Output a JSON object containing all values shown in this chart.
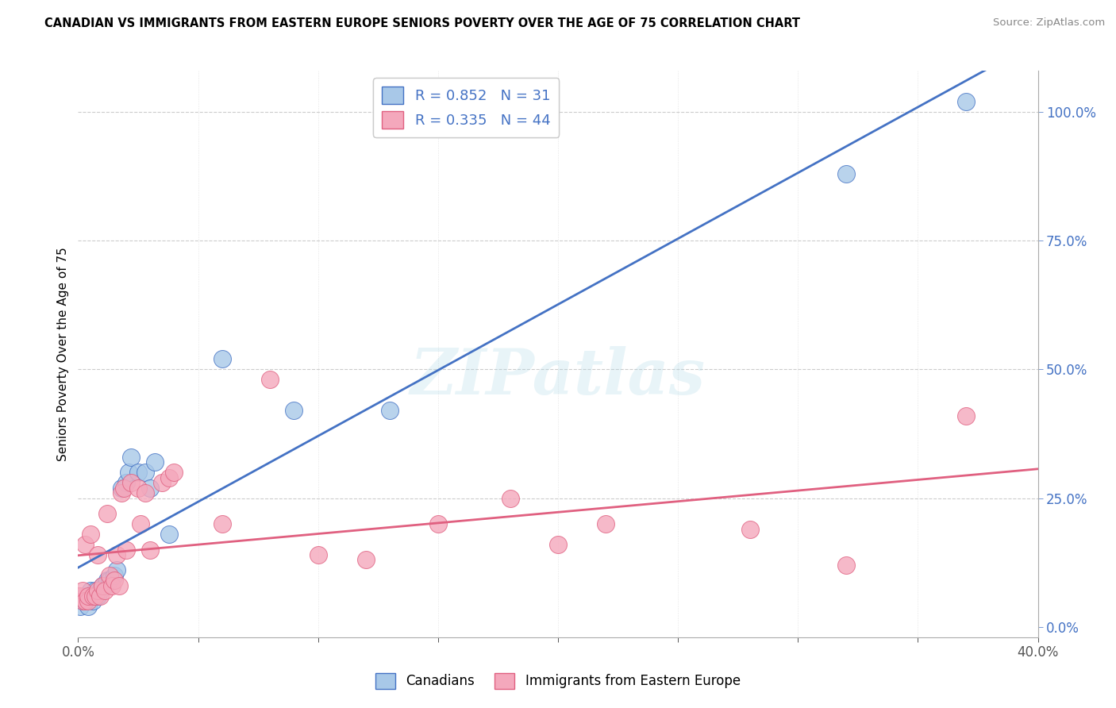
{
  "title": "CANADIAN VS IMMIGRANTS FROM EASTERN EUROPE SENIORS POVERTY OVER THE AGE OF 75 CORRELATION CHART",
  "source": "Source: ZipAtlas.com",
  "ylabel": "Seniors Poverty Over the Age of 75",
  "xlim": [
    0.0,
    0.4
  ],
  "ylim": [
    -0.02,
    1.08
  ],
  "canadian_color": "#a8c8e8",
  "canadian_line_color": "#4472c4",
  "immigrant_color": "#f4a8bc",
  "immigrant_line_color": "#e06080",
  "R_canadian": 0.852,
  "N_canadian": 31,
  "R_immigrant": 0.335,
  "N_immigrant": 44,
  "watermark": "ZIPatlas",
  "canadians_x": [
    0.001,
    0.002,
    0.003,
    0.003,
    0.004,
    0.005,
    0.005,
    0.006,
    0.007,
    0.008,
    0.009,
    0.01,
    0.011,
    0.012,
    0.013,
    0.015,
    0.016,
    0.018,
    0.02,
    0.021,
    0.022,
    0.025,
    0.028,
    0.03,
    0.032,
    0.038,
    0.06,
    0.09,
    0.13,
    0.32,
    0.37
  ],
  "canadians_y": [
    0.04,
    0.05,
    0.05,
    0.06,
    0.04,
    0.06,
    0.07,
    0.05,
    0.07,
    0.06,
    0.07,
    0.08,
    0.08,
    0.09,
    0.09,
    0.1,
    0.11,
    0.27,
    0.28,
    0.3,
    0.33,
    0.3,
    0.3,
    0.27,
    0.32,
    0.18,
    0.52,
    0.42,
    0.42,
    0.88,
    1.02
  ],
  "immigrants_x": [
    0.0,
    0.001,
    0.002,
    0.002,
    0.003,
    0.003,
    0.004,
    0.004,
    0.005,
    0.006,
    0.007,
    0.008,
    0.008,
    0.009,
    0.01,
    0.011,
    0.012,
    0.013,
    0.014,
    0.015,
    0.016,
    0.017,
    0.018,
    0.019,
    0.02,
    0.022,
    0.025,
    0.026,
    0.028,
    0.03,
    0.035,
    0.038,
    0.04,
    0.06,
    0.08,
    0.1,
    0.12,
    0.15,
    0.18,
    0.2,
    0.22,
    0.28,
    0.32,
    0.37
  ],
  "immigrants_y": [
    0.06,
    0.06,
    0.05,
    0.07,
    0.05,
    0.16,
    0.05,
    0.06,
    0.18,
    0.06,
    0.06,
    0.07,
    0.14,
    0.06,
    0.08,
    0.07,
    0.22,
    0.1,
    0.08,
    0.09,
    0.14,
    0.08,
    0.26,
    0.27,
    0.15,
    0.28,
    0.27,
    0.2,
    0.26,
    0.15,
    0.28,
    0.29,
    0.3,
    0.2,
    0.48,
    0.14,
    0.13,
    0.2,
    0.25,
    0.16,
    0.2,
    0.19,
    0.12,
    0.41
  ]
}
